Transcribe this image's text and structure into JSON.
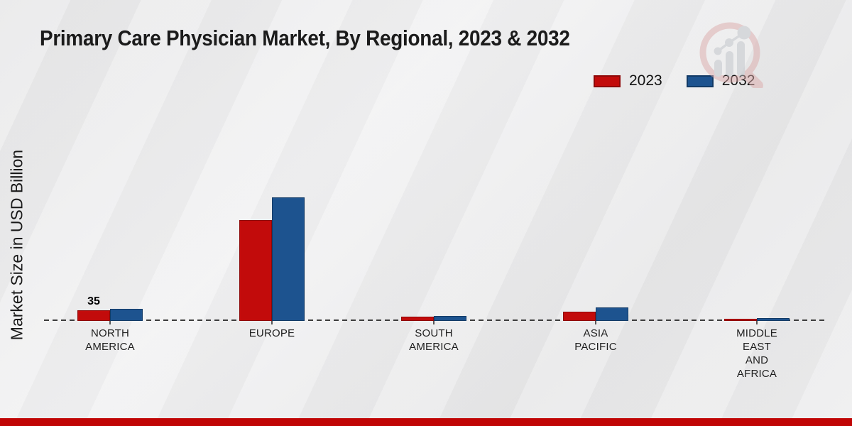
{
  "chart_data": {
    "type": "bar",
    "title": "Primary Care Physician Market, By Regional, 2023 & 2032",
    "xlabel": "",
    "ylabel": "Market Size in USD Billion",
    "categories": [
      "NORTH AMERICA",
      "EUROPE",
      "SOUTH AMERICA",
      "ASIA PACIFIC",
      "MIDDLE EAST AND AFRICA"
    ],
    "series": [
      {
        "name": "2023",
        "color": "#c20b0b",
        "edge_color": "#8e0808",
        "values": [
          35,
          331,
          13,
          31,
          7
        ]
      },
      {
        "name": "2032",
        "color": "#1d538f",
        "edge_color": "#123a66",
        "values": [
          40,
          405,
          16,
          44,
          9
        ]
      }
    ],
    "value_labels": [
      {
        "series_index": 0,
        "category_index": 0,
        "text": "35"
      }
    ],
    "ylim": [
      0,
      450
    ],
    "grid": false,
    "legend_position": "top-right",
    "baseline_style": "dashed"
  },
  "footer": {
    "stripe_color": "#c00505"
  }
}
